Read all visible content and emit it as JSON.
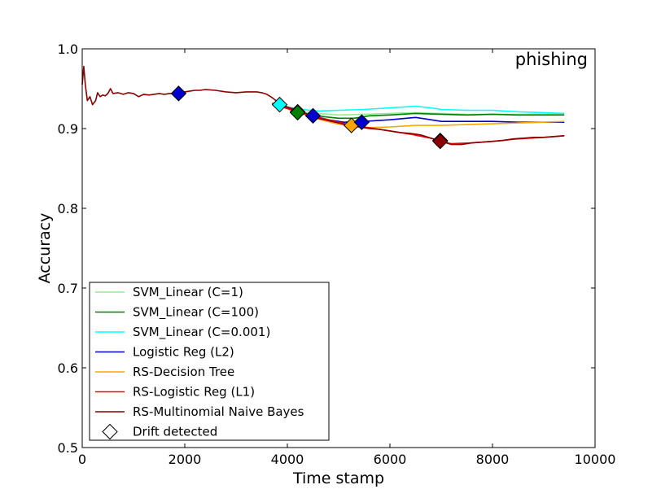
{
  "chart_data": {
    "type": "line",
    "title": "",
    "annotation": "phishing",
    "xlabel": "Time stamp",
    "ylabel": "Accuracy",
    "xlim": [
      0,
      10000
    ],
    "ylim": [
      0.5,
      1.0
    ],
    "xticks": [
      0,
      2000,
      4000,
      6000,
      8000,
      10000
    ],
    "xtick_labels": [
      "0",
      "2000",
      "4000",
      "6000",
      "8000",
      "10000"
    ],
    "yticks": [
      0.5,
      0.6,
      0.7,
      0.8,
      0.9,
      1.0
    ],
    "ytick_labels": [
      "0.5",
      "0.6",
      "0.7",
      "0.8",
      "0.9",
      "1.0"
    ],
    "grid": false,
    "legend_position": "lower-left",
    "series": [
      {
        "name": "SVM_Linear (C=1)",
        "color": "#90ee90",
        "x": [
          3700,
          4000,
          4300,
          4600,
          5000,
          5500,
          6000,
          6500,
          7000,
          7500,
          8000,
          8500,
          9000,
          9400
        ],
        "y": [
          0.932,
          0.926,
          0.921,
          0.919,
          0.917,
          0.918,
          0.919,
          0.92,
          0.919,
          0.918,
          0.918,
          0.918,
          0.918,
          0.918
        ]
      },
      {
        "name": "SVM_Linear (C=100)",
        "color": "#008000",
        "x": [
          3700,
          4000,
          4200,
          4400,
          4700,
          5000,
          5300,
          5600,
          6000,
          6500,
          7000,
          7500,
          8000,
          8500,
          9000,
          9400
        ],
        "y": [
          0.932,
          0.926,
          0.921,
          0.918,
          0.915,
          0.913,
          0.913,
          0.916,
          0.917,
          0.919,
          0.918,
          0.917,
          0.918,
          0.917,
          0.917,
          0.917
        ]
      },
      {
        "name": "SVM_Linear (C=0.001)",
        "color": "#00ffff",
        "x": [
          3700,
          3850,
          4000,
          4300,
          4600,
          5000,
          5500,
          6000,
          6500,
          6800,
          7000,
          7500,
          8000,
          8500,
          9000,
          9400
        ],
        "y": [
          0.932,
          0.93,
          0.927,
          0.924,
          0.922,
          0.923,
          0.924,
          0.926,
          0.928,
          0.926,
          0.924,
          0.923,
          0.923,
          0.921,
          0.92,
          0.919
        ]
      },
      {
        "name": "Logistic Reg (L2)",
        "color": "#0000cc",
        "x": [
          3700,
          4000,
          4300,
          4500,
          4800,
          5100,
          5500,
          6000,
          6500,
          6700,
          7000,
          7500,
          8000,
          8500,
          9000,
          9400
        ],
        "y": [
          0.932,
          0.926,
          0.92,
          0.916,
          0.911,
          0.908,
          0.909,
          0.911,
          0.914,
          0.912,
          0.909,
          0.909,
          0.909,
          0.908,
          0.908,
          0.908
        ]
      },
      {
        "name": "RS-Decision Tree",
        "color": "#ffa500",
        "x": [
          3700,
          4000,
          4300,
          4600,
          4900,
          5200,
          5500,
          6000,
          6500,
          7000,
          7500,
          8000,
          8500,
          9000,
          9400
        ],
        "y": [
          0.932,
          0.925,
          0.918,
          0.912,
          0.907,
          0.903,
          0.901,
          0.902,
          0.904,
          0.904,
          0.905,
          0.906,
          0.907,
          0.908,
          0.909
        ]
      },
      {
        "name": "RS-Logistic Reg (L1)",
        "color": "#ff0000",
        "x": [
          3700,
          4000,
          4400,
          4800,
          5200,
          5600,
          6000,
          6400,
          6800,
          7000,
          7200,
          7600,
          8000,
          8500,
          9000,
          9400
        ],
        "y": [
          0.931,
          0.925,
          0.917,
          0.911,
          0.905,
          0.901,
          0.897,
          0.893,
          0.888,
          0.884,
          0.881,
          0.882,
          0.884,
          0.887,
          0.889,
          0.891
        ]
      },
      {
        "name": "RS-Multinomial Naive Bayes",
        "color": "#8b0000",
        "x": [
          0,
          30,
          60,
          100,
          150,
          200,
          260,
          300,
          350,
          400,
          450,
          500,
          550,
          600,
          700,
          800,
          900,
          1000,
          1100,
          1200,
          1300,
          1400,
          1500,
          1600,
          1700,
          1800,
          1900,
          2000,
          2100,
          2200,
          2300,
          2400,
          2600,
          2800,
          3000,
          3200,
          3400,
          3500,
          3600,
          3700,
          3800,
          3900,
          4000,
          4200,
          4400,
          4600,
          4800,
          5000,
          5200,
          5400,
          5600,
          5800,
          6000,
          6200,
          6400,
          6600,
          6800,
          7000,
          7200,
          7400,
          7600,
          7800,
          8000,
          8200,
          8400,
          8600,
          8800,
          9000,
          9200,
          9400
        ],
        "y": [
          0.955,
          0.978,
          0.955,
          0.935,
          0.94,
          0.93,
          0.935,
          0.945,
          0.94,
          0.942,
          0.941,
          0.944,
          0.95,
          0.944,
          0.945,
          0.943,
          0.945,
          0.944,
          0.94,
          0.943,
          0.942,
          0.943,
          0.944,
          0.943,
          0.944,
          0.944,
          0.945,
          0.946,
          0.947,
          0.948,
          0.948,
          0.949,
          0.948,
          0.946,
          0.945,
          0.946,
          0.946,
          0.945,
          0.943,
          0.939,
          0.934,
          0.93,
          0.927,
          0.923,
          0.918,
          0.913,
          0.91,
          0.907,
          0.904,
          0.902,
          0.9,
          0.899,
          0.897,
          0.895,
          0.894,
          0.892,
          0.888,
          0.884,
          0.88,
          0.88,
          0.882,
          0.883,
          0.884,
          0.885,
          0.887,
          0.888,
          0.889,
          0.889,
          0.89,
          0.891
        ]
      }
    ],
    "drift_label": "Drift detected",
    "drift_points": [
      {
        "x": 1880,
        "y": 0.944,
        "color": "#0000cc"
      },
      {
        "x": 3850,
        "y": 0.93,
        "color": "#00ffff"
      },
      {
        "x": 4200,
        "y": 0.921,
        "color": "#90ee90"
      },
      {
        "x": 4200,
        "y": 0.92,
        "color": "#008000"
      },
      {
        "x": 4500,
        "y": 0.916,
        "color": "#0000cc"
      },
      {
        "x": 5250,
        "y": 0.904,
        "color": "#ffa500"
      },
      {
        "x": 5450,
        "y": 0.908,
        "color": "#0000cc"
      },
      {
        "x": 6980,
        "y": 0.885,
        "color": "#ff0000"
      },
      {
        "x": 6980,
        "y": 0.884,
        "color": "#8b0000"
      }
    ]
  }
}
